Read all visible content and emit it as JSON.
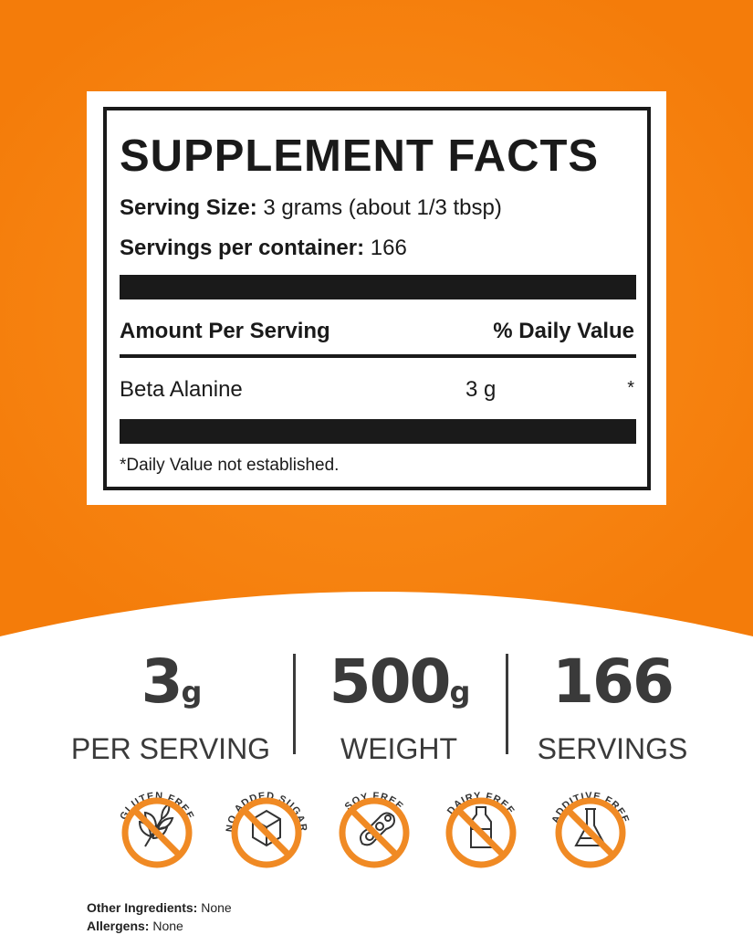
{
  "colors": {
    "accent": "#f7820f",
    "dark": "#1a1a1a",
    "icon_orange": "#f08a24"
  },
  "facts": {
    "title": "SUPPLEMENT FACTS",
    "serving_size_label": "Serving Size:",
    "serving_size_value": "3 grams (about 1/3 tbsp)",
    "servings_label": "Servings per container:",
    "servings_value": "166",
    "amount_header": "Amount Per Serving",
    "dv_header": "% Daily Value",
    "ingredient": "Beta Alanine",
    "ingredient_amount": "3 g",
    "ingredient_dv": "*",
    "footnote": "*Daily Value not established."
  },
  "stats": [
    {
      "value": "3",
      "unit": "g",
      "label": "PER SERVING"
    },
    {
      "value": "500",
      "unit": "g",
      "label": "WEIGHT"
    },
    {
      "value": "166",
      "unit": "",
      "label": "SERVINGS"
    }
  ],
  "badges": [
    {
      "label": "GLUTEN FREE",
      "icon": "wheat-icon"
    },
    {
      "label": "NO ADDED SUGAR",
      "icon": "sugar-cube-icon"
    },
    {
      "label": "SOY FREE",
      "icon": "soybean-icon"
    },
    {
      "label": "DAIRY FREE",
      "icon": "milk-bottle-icon"
    },
    {
      "label": "ADDITIVE FREE",
      "icon": "flask-icon"
    }
  ],
  "footer": {
    "other_label": "Other Ingredients:",
    "other_value": "None",
    "allergens_label": "Allergens:",
    "allergens_value": "None"
  }
}
